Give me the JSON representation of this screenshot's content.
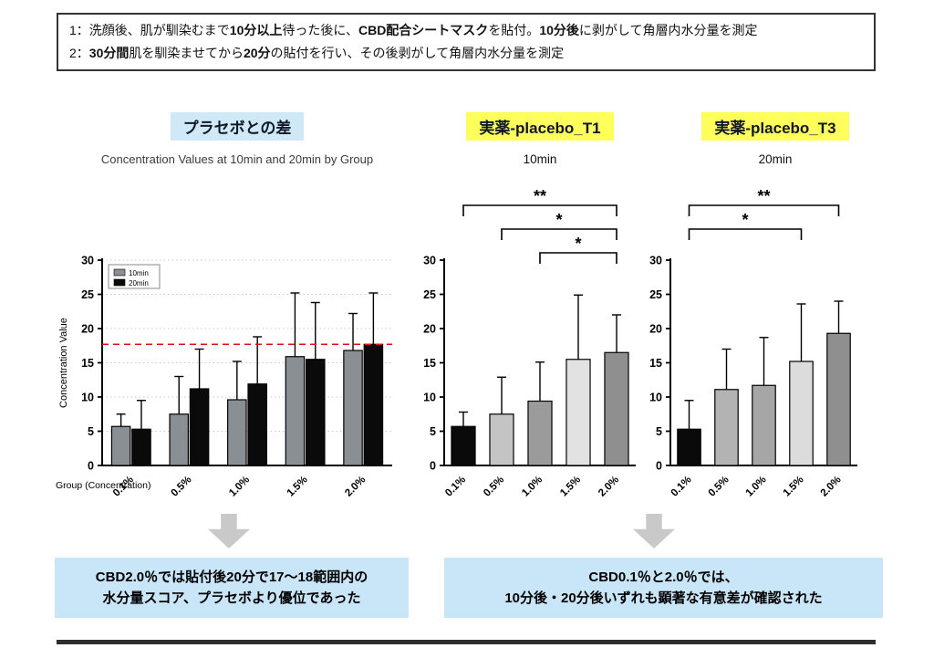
{
  "protocol_box": {
    "lines": [
      {
        "segments": [
          {
            "t": "1：洗顔後、肌が馴染むまで",
            "b": false
          },
          {
            "t": "10分以上",
            "b": true
          },
          {
            "t": "待った後に、",
            "b": false
          },
          {
            "t": "CBD配合シートマスク",
            "b": true
          },
          {
            "t": "を貼付。",
            "b": false
          },
          {
            "t": "10分後",
            "b": true
          },
          {
            "t": "に剥がして角層内水分量を測定",
            "b": false
          }
        ]
      },
      {
        "segments": [
          {
            "t": "2：",
            "b": false
          },
          {
            "t": "30分間",
            "b": true
          },
          {
            "t": "肌を馴染ませてから",
            "b": false
          },
          {
            "t": "20分",
            "b": true
          },
          {
            "t": "の貼付を行い、その後剥がして角層内水分量を測定",
            "b": false
          }
        ]
      }
    ]
  },
  "chart_data": [
    {
      "key": "placebo-diff",
      "type": "bar",
      "title": "プラセボとの差",
      "title_highlight": "#cfe9f8",
      "subtitle": "Concentration Values at 10min and 20min by Group",
      "ylabel": "Concentration Value",
      "xlabel": "Group (Concentration)",
      "categories": [
        "0.1%",
        "0.5%",
        "1.0%",
        "1.5%",
        "2.0%"
      ],
      "series": [
        {
          "name": "10min",
          "color": "#8a8f94",
          "values": [
            5.7,
            7.5,
            9.6,
            15.9,
            16.8
          ],
          "errors": [
            1.8,
            5.5,
            5.6,
            9.3,
            5.4
          ]
        },
        {
          "name": "20min",
          "color": "#0a0a0a",
          "values": [
            5.3,
            11.2,
            11.9,
            15.5,
            17.7
          ],
          "errors": [
            4.2,
            5.8,
            6.9,
            8.3,
            7.5
          ]
        }
      ],
      "ylim": [
        0,
        30
      ],
      "ytick": 5,
      "grid": true,
      "legend_position": "top-left",
      "reference_line": {
        "y": 17.7,
        "color": "#dd1111"
      }
    },
    {
      "key": "t1-10min",
      "type": "bar",
      "title": "実薬-placebo_T1",
      "title_highlight": "#ffff5c",
      "subtitle": "10min",
      "ylabel": "",
      "xlabel": "",
      "categories": [
        "0.1%",
        "0.5%",
        "1.0%",
        "1.5%",
        "2.0%"
      ],
      "values": [
        5.7,
        7.5,
        9.4,
        15.5,
        16.5
      ],
      "errors": [
        2.1,
        5.4,
        5.7,
        9.4,
        5.5
      ],
      "colors": [
        "#0a0a0a",
        "#c4c4c4",
        "#9b9b9b",
        "#e2e2e2",
        "#8f8f8f"
      ],
      "ylim": [
        0,
        30
      ],
      "ytick": 5,
      "grid": false,
      "brackets": [
        {
          "from": 0,
          "to": 4,
          "label": "**",
          "level": 2
        },
        {
          "from": 1,
          "to": 4,
          "label": "*",
          "level": 1
        },
        {
          "from": 2,
          "to": 4,
          "label": "*",
          "level": 0
        }
      ]
    },
    {
      "key": "t3-20min",
      "type": "bar",
      "title": "実薬-placebo_T3",
      "title_highlight": "#ffff5c",
      "subtitle": "20min",
      "ylabel": "",
      "xlabel": "",
      "categories": [
        "0.1%",
        "0.5%",
        "1.0%",
        "1.5%",
        "2.0%"
      ],
      "values": [
        5.3,
        11.1,
        11.7,
        15.2,
        19.3
      ],
      "errors": [
        4.2,
        5.9,
        7.0,
        8.4,
        4.7
      ],
      "colors": [
        "#0a0a0a",
        "#b3b3b3",
        "#a6a6a6",
        "#dcdcdc",
        "#8f8f8f"
      ],
      "ylim": [
        0,
        30
      ],
      "ytick": 5,
      "grid": false,
      "brackets": [
        {
          "from": 0,
          "to": 4,
          "label": "**",
          "level": 2
        },
        {
          "from": 0,
          "to": 3,
          "label": "*",
          "level": 1
        }
      ]
    }
  ],
  "conclusions": [
    {
      "lines": [
        "CBD2.0％では貼付後20分で17〜18範囲内の",
        "水分量スコア、プラセボより優位であった"
      ]
    },
    {
      "lines": [
        "CBD0.1％と2.0％では、",
        "10分後・20分後いずれも顕著な有意差が確認された"
      ]
    }
  ],
  "colors": {
    "callout_bg": "#c9e6f8",
    "arrow_gray": "#c9c9c9",
    "footer_bar": "#2e2e2e"
  }
}
